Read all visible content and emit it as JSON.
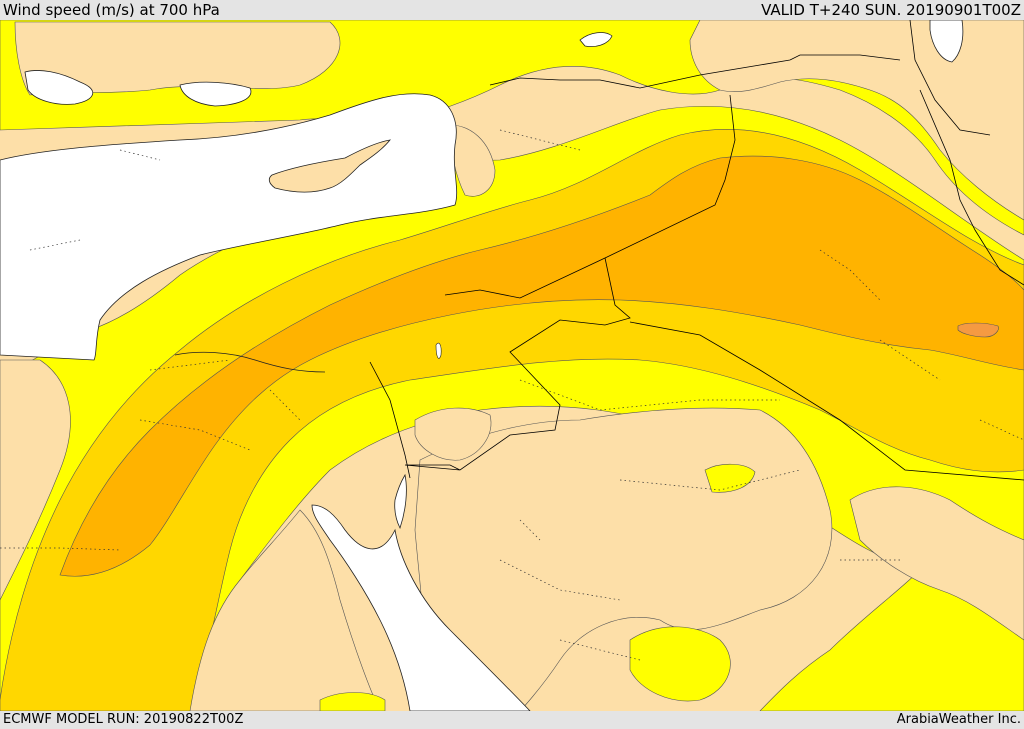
{
  "header": {
    "title": "Wind speed (m/s) at 700 hPa",
    "valid": "VALID T+240 SUN. 20190901T00Z"
  },
  "footer": {
    "model_run": "ECMWF MODEL RUN: 20190822T00Z",
    "credit": "ArabiaWeather Inc."
  },
  "colors": {
    "sea": "#ffffff",
    "land_calm": "#fddfa8",
    "band_1": "#ffff00",
    "band_2": "#ffd700",
    "band_3": "#ffb300",
    "band_4": "#f59a42",
    "border": "#000000",
    "contour": "#555555"
  }
}
